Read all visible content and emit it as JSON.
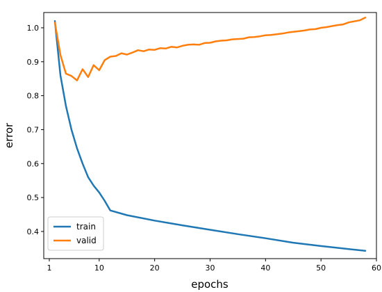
{
  "chart_data": {
    "type": "line",
    "xlabel": "epochs",
    "ylabel": "error",
    "xlim": [
      0,
      60
    ],
    "ylim": [
      0.32,
      1.045
    ],
    "x_ticks": [
      1,
      10,
      20,
      30,
      40,
      50,
      60
    ],
    "y_ticks": [
      0.4,
      0.5,
      0.6,
      0.7,
      0.8,
      0.9,
      1.0
    ],
    "x_tick_labels": [
      "1",
      "10",
      "20",
      "30",
      "40",
      "50",
      "60"
    ],
    "y_tick_labels": [
      "0.4",
      "0.5",
      "0.6",
      "0.7",
      "0.8",
      "0.9",
      "1.0"
    ],
    "grid": false,
    "legend": {
      "placement": "bottom-left"
    },
    "series": [
      {
        "name": "train",
        "color": "#1f77b4",
        "x": [
          2,
          3,
          4,
          5,
          6,
          7,
          8,
          9,
          10,
          11,
          12,
          15,
          20,
          25,
          30,
          35,
          40,
          45,
          50,
          55,
          58
        ],
        "values": [
          1.02,
          0.86,
          0.77,
          0.7,
          0.645,
          0.6,
          0.56,
          0.535,
          0.515,
          0.49,
          0.462,
          0.448,
          0.432,
          0.418,
          0.405,
          0.392,
          0.38,
          0.367,
          0.357,
          0.348,
          0.343
        ]
      },
      {
        "name": "valid",
        "color": "#ff7f0e",
        "x": [
          2,
          3,
          4,
          5,
          6,
          7,
          8,
          9,
          10,
          11,
          12,
          13,
          14,
          15,
          16,
          17,
          18,
          19,
          20,
          21,
          22,
          23,
          24,
          25,
          26,
          27,
          28,
          29,
          30,
          31,
          32,
          33,
          34,
          35,
          36,
          37,
          38,
          39,
          40,
          41,
          42,
          43,
          44,
          45,
          46,
          47,
          48,
          49,
          50,
          51,
          52,
          53,
          54,
          55,
          56,
          57,
          58
        ],
        "values": [
          1.015,
          0.92,
          0.865,
          0.858,
          0.845,
          0.878,
          0.855,
          0.89,
          0.875,
          0.905,
          0.915,
          0.917,
          0.925,
          0.921,
          0.927,
          0.934,
          0.931,
          0.936,
          0.935,
          0.94,
          0.939,
          0.944,
          0.942,
          0.947,
          0.95,
          0.951,
          0.95,
          0.955,
          0.956,
          0.96,
          0.962,
          0.963,
          0.966,
          0.967,
          0.968,
          0.972,
          0.973,
          0.975,
          0.978,
          0.979,
          0.981,
          0.983,
          0.986,
          0.988,
          0.99,
          0.992,
          0.995,
          0.996,
          1.0,
          1.002,
          1.005,
          1.008,
          1.01,
          1.016,
          1.019,
          1.022,
          1.03
        ]
      }
    ]
  }
}
